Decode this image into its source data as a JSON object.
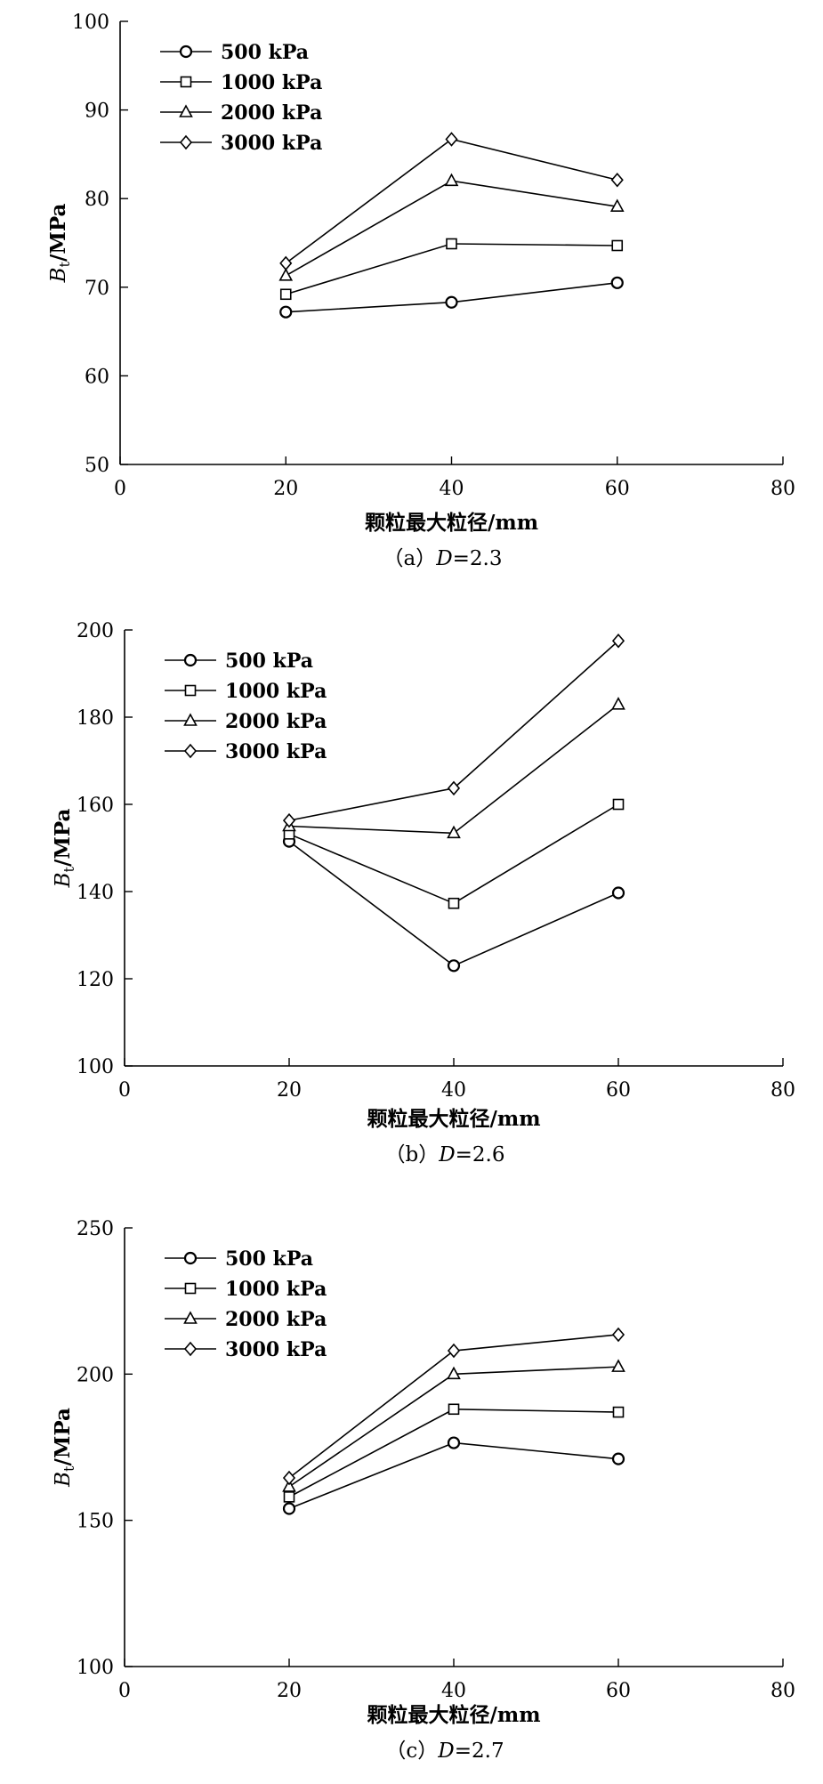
{
  "chart_data": [
    {
      "type": "line",
      "caption_label": "（a）",
      "caption_d": "D",
      "caption_value": "=2.3",
      "xlabel": "颗粒最大粒径/mm",
      "ylabel_main": "B",
      "ylabel_sub": "t",
      "ylabel_unit": "/MPa",
      "xlim": [
        0,
        80
      ],
      "ylim": [
        50,
        100
      ],
      "xticks": [
        0,
        20,
        40,
        60,
        80
      ],
      "yticks": [
        50,
        60,
        70,
        80,
        90,
        100
      ],
      "x": [
        20,
        40,
        60
      ],
      "legend_position": "top-left",
      "series": [
        {
          "name": "500 kPa",
          "marker": "circle",
          "values": [
            67.2,
            68.3,
            70.5
          ]
        },
        {
          "name": "1000 kPa",
          "marker": "square",
          "values": [
            69.2,
            74.9,
            74.7
          ]
        },
        {
          "name": "2000 kPa",
          "marker": "triangle",
          "values": [
            71.3,
            82.0,
            79.1
          ]
        },
        {
          "name": "3000 kPa",
          "marker": "diamond",
          "values": [
            72.7,
            86.7,
            82.1
          ]
        }
      ]
    },
    {
      "type": "line",
      "caption_label": "（b）",
      "caption_d": "D",
      "caption_value": "=2.6",
      "xlabel": "颗粒最大粒径/mm",
      "ylabel_main": "B",
      "ylabel_sub": "t",
      "ylabel_unit": "/MPa",
      "xlim": [
        0,
        80
      ],
      "ylim": [
        100,
        200
      ],
      "xticks": [
        0,
        20,
        40,
        60,
        80
      ],
      "yticks": [
        100,
        120,
        140,
        160,
        180,
        200
      ],
      "x": [
        20,
        40,
        60
      ],
      "legend_position": "top-left",
      "series": [
        {
          "name": "500 kPa",
          "marker": "circle",
          "values": [
            151.5,
            123.0,
            139.7
          ]
        },
        {
          "name": "1000 kPa",
          "marker": "square",
          "values": [
            153.2,
            137.3,
            160.0
          ]
        },
        {
          "name": "2000 kPa",
          "marker": "triangle",
          "values": [
            155.0,
            153.4,
            182.9
          ]
        },
        {
          "name": "3000 kPa",
          "marker": "diamond",
          "values": [
            156.3,
            163.7,
            197.5
          ]
        }
      ]
    },
    {
      "type": "line",
      "caption_label": "（c）",
      "caption_d": "D",
      "caption_value": "=2.7",
      "xlabel": "颗粒最大粒径/mm",
      "ylabel_main": "B",
      "ylabel_sub": "t",
      "ylabel_unit": "/MPa",
      "xlim": [
        0,
        80
      ],
      "ylim": [
        100,
        250
      ],
      "xticks": [
        0,
        20,
        40,
        60,
        80
      ],
      "yticks": [
        100,
        150,
        200,
        250
      ],
      "x": [
        20,
        40,
        60
      ],
      "legend_position": "top-left",
      "series": [
        {
          "name": "500 kPa",
          "marker": "circle",
          "values": [
            154.0,
            176.5,
            171.0
          ]
        },
        {
          "name": "1000 kPa",
          "marker": "square",
          "values": [
            158.0,
            188.0,
            187.0
          ]
        },
        {
          "name": "2000 kPa",
          "marker": "triangle",
          "values": [
            161.5,
            200.0,
            202.5
          ]
        },
        {
          "name": "3000 kPa",
          "marker": "diamond",
          "values": [
            164.5,
            208.0,
            213.5
          ]
        }
      ]
    }
  ]
}
